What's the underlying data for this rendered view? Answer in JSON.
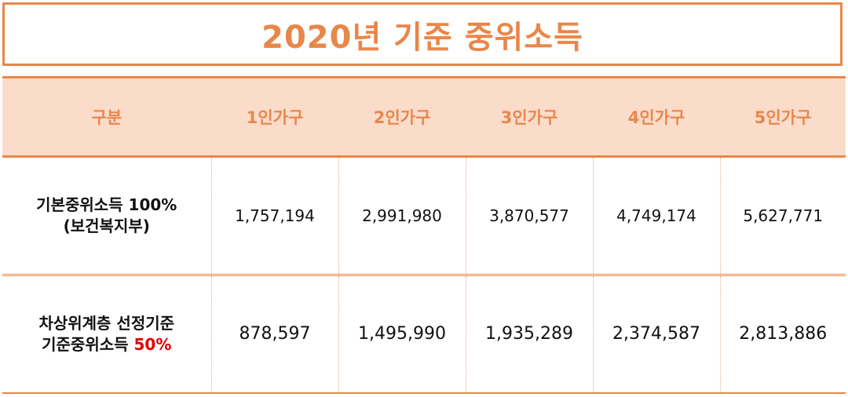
{
  "title": "2020년 기준 중위소득",
  "colors": {
    "accent": "#e8874a",
    "header_bg": "#fbdccb",
    "highlight_red": "#e00000"
  },
  "table": {
    "headers": [
      "구분",
      "1인가구",
      "2인가구",
      "3인가구",
      "4인가구",
      "5인가구"
    ],
    "rows": [
      {
        "label_line1": "기본중위소득 100%",
        "label_line2": "(보건복지부)",
        "values": [
          "1,757,194",
          "2,991,980",
          "3,870,577",
          "4,749,174",
          "5,627,771"
        ]
      },
      {
        "label_line1": "차상위계층 선정기준",
        "label_line2": "기준중위소득",
        "label_highlight": "50%",
        "values": [
          "878,597",
          "1,495,990",
          "1,935,289",
          "2,374,587",
          "2,813,886"
        ]
      }
    ]
  }
}
